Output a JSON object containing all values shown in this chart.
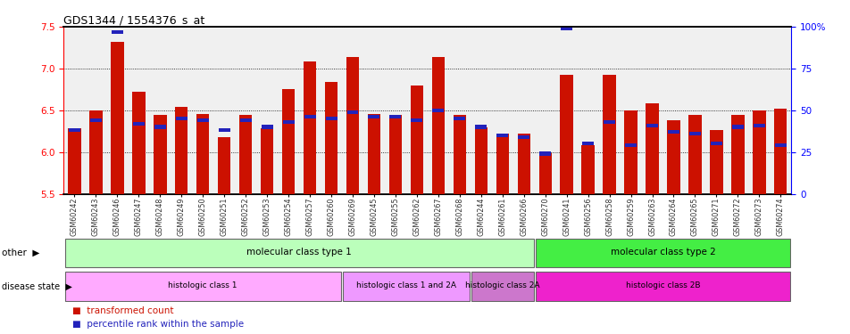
{
  "title": "GDS1344 / 1554376_s_at",
  "samples": [
    "GSM60242",
    "GSM60243",
    "GSM60246",
    "GSM60247",
    "GSM60248",
    "GSM60249",
    "GSM60250",
    "GSM60251",
    "GSM60252",
    "GSM60253",
    "GSM60254",
    "GSM60257",
    "GSM60260",
    "GSM60269",
    "GSM60245",
    "GSM60255",
    "GSM60262",
    "GSM60267",
    "GSM60268",
    "GSM60244",
    "GSM60261",
    "GSM60266",
    "GSM60270",
    "GSM60241",
    "GSM60256",
    "GSM60258",
    "GSM60259",
    "GSM60263",
    "GSM60264",
    "GSM60265",
    "GSM60271",
    "GSM60272",
    "GSM60273",
    "GSM60274"
  ],
  "transformed_count": [
    6.28,
    6.5,
    7.32,
    6.72,
    6.44,
    6.54,
    6.46,
    6.18,
    6.44,
    6.28,
    6.75,
    7.08,
    6.84,
    7.14,
    6.46,
    6.44,
    6.8,
    7.14,
    6.44,
    6.3,
    6.22,
    6.22,
    5.98,
    6.92,
    6.08,
    6.92,
    6.5,
    6.58,
    6.38,
    6.44,
    6.26,
    6.44,
    6.5,
    6.52
  ],
  "percentile_rank_pct": [
    38,
    44,
    97,
    42,
    40,
    45,
    44,
    38,
    44,
    40,
    43,
    46,
    45,
    49,
    46,
    46,
    44,
    50,
    45,
    40,
    35,
    34,
    24,
    99,
    30,
    43,
    29,
    41,
    37,
    36,
    30,
    40,
    41,
    29
  ],
  "ylim_left": [
    5.5,
    7.5
  ],
  "yticks_left": [
    5.5,
    6.0,
    6.5,
    7.0,
    7.5
  ],
  "ylim_right": [
    0,
    100
  ],
  "yticks_right": [
    0,
    25,
    50,
    75,
    100
  ],
  "bar_color": "#cc1100",
  "dot_color": "#2222bb",
  "groups": [
    {
      "label": "molecular class type 1",
      "start": 0,
      "end": 22,
      "color": "#bbffbb"
    },
    {
      "label": "molecular class type 2",
      "start": 22,
      "end": 34,
      "color": "#44ee44"
    }
  ],
  "disease_groups": [
    {
      "label": "histologic class 1",
      "start": 0,
      "end": 13,
      "color": "#ffaaff"
    },
    {
      "label": "histologic class 1 and 2A",
      "start": 13,
      "end": 19,
      "color": "#ee99ff"
    },
    {
      "label": "histologic class 2A",
      "start": 19,
      "end": 22,
      "color": "#cc77cc"
    },
    {
      "label": "histologic class 2B",
      "start": 22,
      "end": 34,
      "color": "#ee22cc"
    }
  ],
  "other_label": "other",
  "disease_label": "disease state",
  "legend_bar": "transformed count",
  "legend_dot": "percentile rank within the sample"
}
